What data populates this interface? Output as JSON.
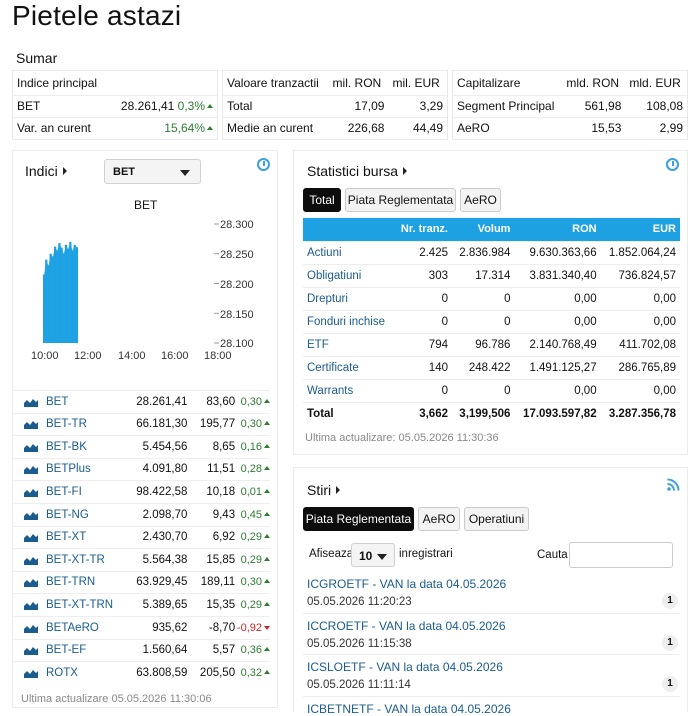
{
  "page": {
    "title": "Pietele astazi"
  },
  "sumar": {
    "title": "Sumar",
    "index": {
      "header": "Indice principal",
      "rows": [
        {
          "name": "BET",
          "value": "28.261,41",
          "pct": "0,3%"
        },
        {
          "name": "Var. an curent",
          "value": "",
          "pct": "15,64%"
        }
      ]
    },
    "tranzactii": {
      "header": "Valoare tranzactii",
      "col1": "mil. RON",
      "col2": "mil. EUR",
      "rows": [
        {
          "name": "Total",
          "ron": "17,09",
          "eur": "3,29"
        },
        {
          "name": "Medie an curent",
          "ron": "226,68",
          "eur": "44,49"
        }
      ]
    },
    "capitalizare": {
      "header": "Capitalizare",
      "col1": "mld. RON",
      "col2": "mld. EUR",
      "rows": [
        {
          "name": "Segment Principal",
          "ron": "561,98",
          "eur": "108,08"
        },
        {
          "name": "AeRO",
          "ron": "15,53",
          "eur": "2,99"
        }
      ]
    }
  },
  "indici": {
    "title": "Indici",
    "selected": "BET",
    "chart_data": {
      "type": "area",
      "title": "BET",
      "ylim": [
        28100,
        28300
      ],
      "y_ticks": [
        "28.300",
        "28.250",
        "28.200",
        "28.150",
        "28.100"
      ],
      "x_ticks": [
        "10:00",
        "12:00",
        "14:00",
        "16:00",
        "18:00"
      ],
      "x_range_hours": [
        10,
        18
      ],
      "color": "#1da1e3",
      "x": [
        10.0,
        10.1,
        10.2,
        10.3,
        10.4,
        10.5,
        10.6,
        10.7,
        10.8,
        10.9,
        11.0,
        11.1,
        11.2,
        11.3,
        11.4,
        11.5
      ],
      "y": [
        28215,
        28240,
        28230,
        28250,
        28245,
        28262,
        28255,
        28268,
        28260,
        28250,
        28265,
        28258,
        28270,
        28255,
        28265,
        28261
      ]
    },
    "rows": [
      {
        "name": "BET",
        "value": "28.261,41",
        "change": "83,60",
        "pct": "0,30",
        "dir": "up"
      },
      {
        "name": "BET-TR",
        "value": "66.181,30",
        "change": "195,77",
        "pct": "0,30",
        "dir": "up"
      },
      {
        "name": "BET-BK",
        "value": "5.454,56",
        "change": "8,65",
        "pct": "0,16",
        "dir": "up"
      },
      {
        "name": "BETPlus",
        "value": "4.091,80",
        "change": "11,51",
        "pct": "0,28",
        "dir": "up"
      },
      {
        "name": "BET-FI",
        "value": "98.422,58",
        "change": "10,18",
        "pct": "0,01",
        "dir": "up"
      },
      {
        "name": "BET-NG",
        "value": "2.098,70",
        "change": "9,43",
        "pct": "0,45",
        "dir": "up"
      },
      {
        "name": "BET-XT",
        "value": "2.430,70",
        "change": "6,92",
        "pct": "0,29",
        "dir": "up"
      },
      {
        "name": "BET-XT-TR",
        "value": "5.564,38",
        "change": "15,85",
        "pct": "0,29",
        "dir": "up"
      },
      {
        "name": "BET-TRN",
        "value": "63.929,45",
        "change": "189,11",
        "pct": "0,30",
        "dir": "up"
      },
      {
        "name": "BET-XT-TRN",
        "value": "5.389,65",
        "change": "15,35",
        "pct": "0,29",
        "dir": "up"
      },
      {
        "name": "BETAeRO",
        "value": "935,62",
        "change": "-8,70",
        "pct": "-0,92",
        "dir": "down"
      },
      {
        "name": "BET-EF",
        "value": "1.560,64",
        "change": "5,57",
        "pct": "0,36",
        "dir": "up"
      },
      {
        "name": "ROTX",
        "value": "63.808,59",
        "change": "205,50",
        "pct": "0,32",
        "dir": "up"
      }
    ],
    "updated": "Ultima actualizare 05.05.2026 11:30:06"
  },
  "statistici": {
    "title": "Statistici bursa",
    "tabs": [
      "Total",
      "Piata Reglementata",
      "AeRO"
    ],
    "columns": [
      "",
      "Nr. tranz.",
      "Volum",
      "RON",
      "EUR"
    ],
    "rows": [
      [
        "Actiuni",
        "2.425",
        "2.836.984",
        "9.630.363,66",
        "1.852.064,24"
      ],
      [
        "Obligatiuni",
        "303",
        "17.314",
        "3.831.340,40",
        "736.824,57"
      ],
      [
        "Drepturi",
        "0",
        "0",
        "0,00",
        "0,00"
      ],
      [
        "Fonduri inchise",
        "0",
        "0",
        "0,00",
        "0,00"
      ],
      [
        "ETF",
        "794",
        "96.786",
        "2.140.768,49",
        "411.702,08"
      ],
      [
        "Certificate",
        "140",
        "248.422",
        "1.491.125,27",
        "286.765,89"
      ],
      [
        "Warrants",
        "0",
        "0",
        "0,00",
        "0,00"
      ],
      [
        "Total",
        "3,662",
        "3,199,506",
        "17.093.597,82",
        "3.287.356,78"
      ]
    ],
    "updated": "Ultima actualizare: 05.05.2026 11:30:36"
  },
  "stiri": {
    "title": "Stiri",
    "tabs": [
      "Piata Reglementata",
      "AeRO",
      "Operatiuni"
    ],
    "show_label": "Afiseaza",
    "show_value": "10",
    "records_label": "inregistrari",
    "search_label": "Cauta",
    "search_value": "",
    "items": [
      {
        "title": "ICGROETF - VAN la data 04.05.2026",
        "date": "05.05.2026 11:20:23",
        "count": "1"
      },
      {
        "title": "ICCROETF - VAN la data 04.05.2026",
        "date": "05.05.2026 11:15:38",
        "count": "1"
      },
      {
        "title": "ICSLOETF - VAN la data 04.05.2026",
        "date": "05.05.2026 11:11:14",
        "count": "1"
      },
      {
        "title": "ICBETNETF - VAN la data 04.05.2026",
        "date": "",
        "count": ""
      }
    ]
  }
}
